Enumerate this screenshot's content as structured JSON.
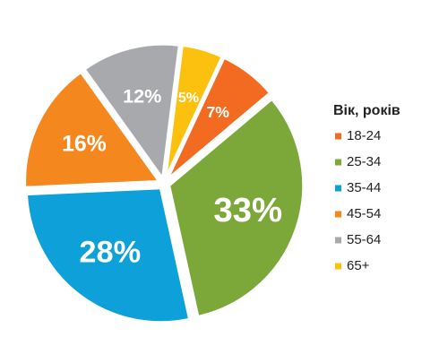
{
  "chart_data": {
    "type": "pie",
    "legend_title": "Вік, років",
    "categories": [
      "18-24",
      "25-34",
      "35-44",
      "45-54",
      "55-64",
      "65+"
    ],
    "values": [
      7,
      33,
      28,
      16,
      12,
      5
    ],
    "value_labels": [
      "7%",
      "33%",
      "28%",
      "16%",
      "12%",
      "5%"
    ],
    "colors": [
      "#f26b21",
      "#7ca83a",
      "#0ea0d9",
      "#f5871f",
      "#a7a9ac",
      "#fcc10f"
    ],
    "legend": "right"
  }
}
